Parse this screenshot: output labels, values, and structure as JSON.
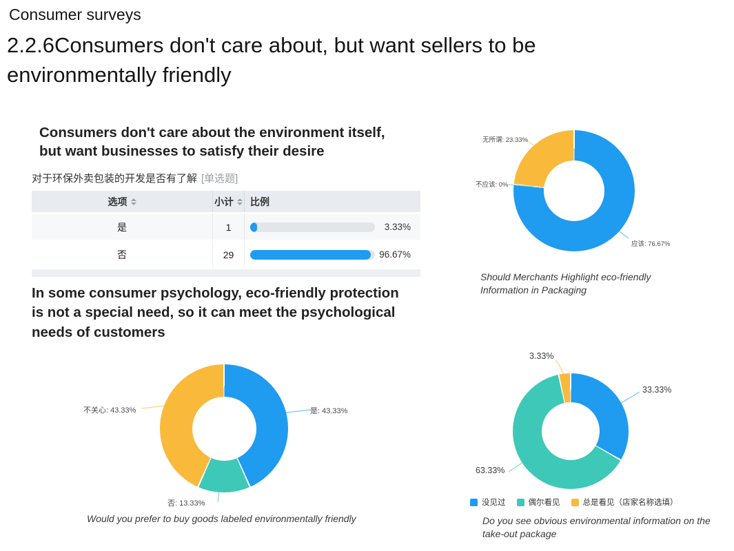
{
  "header": {
    "kicker": "Consumer surveys",
    "title": "2.2.6Consumers don't care about, but want sellers to be environmentally friendly"
  },
  "left": {
    "heading1": "Consumers don't care about the environment itself, but want businesses to satisfy their desire",
    "question": "对于环保外卖包装的开发是否有了解",
    "question_tag": "[单选题]",
    "table": {
      "headers": [
        "选项",
        "小计",
        "比例"
      ],
      "rows": [
        {
          "option": "是",
          "count": "1",
          "percent": "3.33%",
          "percent_value": 3.33
        },
        {
          "option": "否",
          "count": "29",
          "percent": "96.67%",
          "percent_value": 96.67
        }
      ],
      "truncated_row_hint": ".."
    },
    "heading2": "In some consumer psychology, eco-friendly protection is not a special need, so it can meet the psychological needs of customers"
  },
  "colors": {
    "blue": "#1f9bf0",
    "teal": "#3ec8b7",
    "yellow": "#f9ba3c",
    "bar_track": "#e3e6e9"
  },
  "chart_data": [
    {
      "type": "donut",
      "title": "Would you prefer to buy goods labeled environmentally friendly",
      "start_angle_deg": 0,
      "direction": "clockwise",
      "legend_position": "none",
      "slices": [
        {
          "name": "是",
          "value": 43.33,
          "color": "#1f9bf0",
          "annotation": "是: 43.33%"
        },
        {
          "name": "否",
          "value": 13.33,
          "color": "#3ec8b7",
          "annotation": "否: 13.33%"
        },
        {
          "name": "不关心",
          "value": 43.33,
          "color": "#f9ba3c",
          "annotation": "不关心: 43.33%"
        }
      ]
    },
    {
      "type": "donut",
      "title": "Should Merchants Highlight eco-friendly Information in Packaging",
      "start_angle_deg": 0,
      "direction": "clockwise",
      "legend_position": "none",
      "slices": [
        {
          "name": "应该",
          "value": 76.67,
          "color": "#1f9bf0",
          "annotation": "应该: 76.67%"
        },
        {
          "name": "不应该",
          "value": 0,
          "color": "#3ec8b7",
          "annotation": "不应该: 0%"
        },
        {
          "name": "无所谓",
          "value": 23.33,
          "color": "#f9ba3c",
          "annotation": "无所谓: 23.33%"
        }
      ]
    },
    {
      "type": "donut",
      "title": "Do you see obvious environmental information on the take-out package",
      "start_angle_deg": 0,
      "direction": "clockwise",
      "legend_position": "bottom",
      "slices": [
        {
          "name": "没见过",
          "value": 33.33,
          "color": "#1f9bf0",
          "annotation": "33.33%"
        },
        {
          "name": "偶尔看见",
          "value": 63.33,
          "color": "#3ec8b7",
          "annotation": "63.33%"
        },
        {
          "name": "总是看见（店家名称选填）",
          "value": 3.33,
          "color": "#f9ba3c",
          "annotation": "3.33%"
        }
      ]
    }
  ]
}
